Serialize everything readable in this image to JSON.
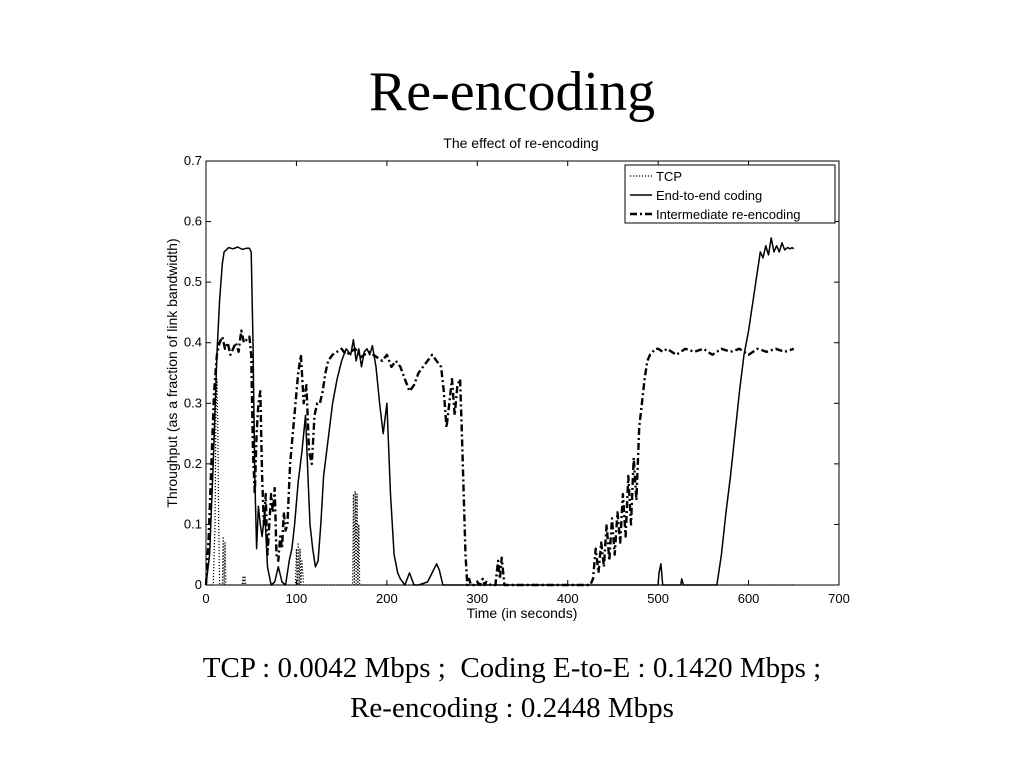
{
  "slide": {
    "title": "Re-encoding",
    "caption_line1": "TCP : 0.0042 Mbps ;  Coding E-to-E : 0.1420 Mbps ;",
    "caption_line2": "Re-encoding : 0.2448 Mbps"
  },
  "chart_data": {
    "type": "line",
    "title": "The effect of re-encoding",
    "xlabel": "Time (in seconds)",
    "ylabel": "Throughput (as a fraction of link bandwidth)",
    "xlim": [
      0,
      700
    ],
    "ylim": [
      0,
      0.7
    ],
    "xticks": [
      0,
      100,
      200,
      300,
      400,
      500,
      600,
      700
    ],
    "yticks": [
      0,
      0.1,
      0.2,
      0.3,
      0.4,
      0.5,
      0.6,
      0.7
    ],
    "grid": false,
    "legend_position": "top-right",
    "series": [
      {
        "name": "TCP",
        "line_style": "dotted",
        "x": [
          0,
          8,
          10,
          11,
          12,
          13,
          14,
          15,
          18,
          19,
          20,
          21,
          22,
          25,
          40,
          41,
          42,
          43,
          44,
          90,
          99,
          100,
          101,
          102,
          103,
          104,
          105,
          106,
          108,
          160,
          162,
          163,
          164,
          165,
          166,
          167,
          168,
          169,
          170,
          172,
          650
        ],
        "y": [
          0,
          0,
          0.1,
          0.28,
          0.34,
          0.26,
          0.1,
          0,
          0,
          0.08,
          0,
          0.07,
          0,
          0,
          0,
          0.015,
          0,
          0.015,
          0,
          0,
          0,
          0.06,
          0,
          0.07,
          0,
          0.06,
          0,
          0.04,
          0,
          0,
          0,
          0.15,
          0,
          0.155,
          0,
          0.15,
          0,
          0.1,
          0,
          0,
          0
        ]
      },
      {
        "name": "End-to-end coding",
        "line_style": "solid",
        "x": [
          0,
          4,
          8,
          12,
          15,
          18,
          20,
          25,
          30,
          35,
          40,
          45,
          48,
          50,
          52,
          54,
          56,
          58,
          60,
          62,
          65,
          68,
          72,
          76,
          80,
          84,
          88,
          92,
          95,
          98,
          102,
          106,
          110,
          113,
          115,
          118,
          121,
          124,
          127,
          130,
          135,
          140,
          145,
          150,
          155,
          160,
          163,
          166,
          169,
          172,
          175,
          178,
          181,
          184,
          188,
          192,
          196,
          200,
          204,
          208,
          212,
          215,
          220,
          225,
          230,
          235,
          245,
          250,
          255,
          258,
          262,
          270,
          280,
          300,
          320,
          340,
          500,
          501,
          503,
          505,
          520,
          525,
          526,
          528,
          565,
          570,
          575,
          580,
          585,
          590,
          595,
          600,
          603,
          606,
          608,
          611,
          613,
          616,
          619,
          622,
          625,
          628,
          631,
          634,
          637,
          640,
          643,
          646,
          648,
          650
        ],
        "y": [
          0,
          0.05,
          0.2,
          0.38,
          0.47,
          0.53,
          0.55,
          0.557,
          0.555,
          0.558,
          0.554,
          0.556,
          0.556,
          0.55,
          0.4,
          0.18,
          0.06,
          0.13,
          0.1,
          0.08,
          0.12,
          0.03,
          0.0,
          0.005,
          0.03,
          0.005,
          0.0,
          0.04,
          0.06,
          0.1,
          0.17,
          0.22,
          0.28,
          0.17,
          0.1,
          0.06,
          0.03,
          0.04,
          0.1,
          0.18,
          0.24,
          0.3,
          0.34,
          0.37,
          0.39,
          0.38,
          0.405,
          0.37,
          0.39,
          0.36,
          0.385,
          0.39,
          0.38,
          0.395,
          0.36,
          0.3,
          0.25,
          0.3,
          0.15,
          0.05,
          0.02,
          0.01,
          0.0,
          0.02,
          0.0,
          0.0,
          0.005,
          0.02,
          0.035,
          0.025,
          0.0,
          0.0,
          0.0,
          0.0,
          0.0,
          0.0,
          0.0,
          0.02,
          0.035,
          0.0,
          0.0,
          0.0,
          0.01,
          0.0,
          0.0,
          0.05,
          0.12,
          0.18,
          0.25,
          0.32,
          0.38,
          0.42,
          0.45,
          0.48,
          0.5,
          0.53,
          0.55,
          0.54,
          0.56,
          0.545,
          0.573,
          0.55,
          0.56,
          0.55,
          0.565,
          0.553,
          0.557,
          0.555,
          0.557,
          0.555
        ]
      },
      {
        "name": "Intermediate re-encoding",
        "line_style": "dash-dot",
        "x": [
          0,
          3,
          6,
          9,
          12,
          15,
          18,
          21,
          24,
          27,
          30,
          33,
          36,
          39,
          42,
          45,
          48,
          50,
          52,
          54,
          56,
          58,
          60,
          62,
          64,
          66,
          68,
          70,
          72,
          74,
          76,
          78,
          80,
          82,
          84,
          86,
          88,
          90,
          93,
          96,
          99,
          102,
          105,
          108,
          111,
          114,
          117,
          120,
          123,
          126,
          129,
          132,
          135,
          140,
          145,
          150,
          155,
          160,
          165,
          170,
          175,
          180,
          185,
          190,
          195,
          200,
          205,
          210,
          215,
          220,
          225,
          230,
          235,
          240,
          245,
          250,
          255,
          260,
          263,
          266,
          269,
          272,
          275,
          278,
          281,
          283,
          285,
          287,
          289,
          291,
          293,
          296,
          300,
          303,
          306,
          308,
          310,
          315,
          320,
          323,
          325,
          327,
          330,
          400,
          425,
          428,
          431,
          434,
          437,
          440,
          443,
          446,
          449,
          452,
          455,
          458,
          461,
          464,
          467,
          470,
          473,
          476,
          479,
          482,
          485,
          488,
          491,
          494,
          497,
          500,
          505,
          510,
          520,
          530,
          540,
          550,
          560,
          570,
          580,
          590,
          600,
          610,
          620,
          630,
          640,
          650
        ],
        "y": [
          0,
          0.08,
          0.2,
          0.32,
          0.38,
          0.4,
          0.41,
          0.39,
          0.4,
          0.38,
          0.39,
          0.4,
          0.385,
          0.42,
          0.4,
          0.405,
          0.41,
          0.38,
          0.22,
          0.15,
          0.25,
          0.3,
          0.32,
          0.18,
          0.1,
          0.15,
          0.05,
          0.1,
          0.15,
          0.12,
          0.16,
          0.05,
          0.04,
          0.08,
          0.06,
          0.12,
          0.09,
          0.1,
          0.2,
          0.25,
          0.3,
          0.35,
          0.38,
          0.3,
          0.33,
          0.22,
          0.2,
          0.28,
          0.3,
          0.3,
          0.32,
          0.35,
          0.37,
          0.38,
          0.385,
          0.39,
          0.38,
          0.385,
          0.39,
          0.375,
          0.38,
          0.385,
          0.38,
          0.375,
          0.37,
          0.38,
          0.36,
          0.37,
          0.36,
          0.34,
          0.32,
          0.33,
          0.35,
          0.36,
          0.37,
          0.38,
          0.37,
          0.36,
          0.32,
          0.26,
          0.3,
          0.34,
          0.28,
          0.33,
          0.34,
          0.25,
          0.15,
          0.05,
          0.0,
          0.01,
          0.0,
          0.0,
          0.005,
          0.0,
          0.01,
          0.0,
          0.005,
          0.0,
          0.0,
          0.04,
          0.01,
          0.045,
          0.0,
          0.0,
          0.0,
          0.01,
          0.06,
          0.02,
          0.07,
          0.03,
          0.1,
          0.04,
          0.11,
          0.05,
          0.12,
          0.07,
          0.15,
          0.08,
          0.18,
          0.1,
          0.21,
          0.14,
          0.26,
          0.3,
          0.34,
          0.37,
          0.38,
          0.385,
          0.39,
          0.39,
          0.385,
          0.39,
          0.38,
          0.39,
          0.385,
          0.39,
          0.38,
          0.39,
          0.385,
          0.39,
          0.38,
          0.39,
          0.385,
          0.39,
          0.385,
          0.39
        ]
      }
    ]
  }
}
